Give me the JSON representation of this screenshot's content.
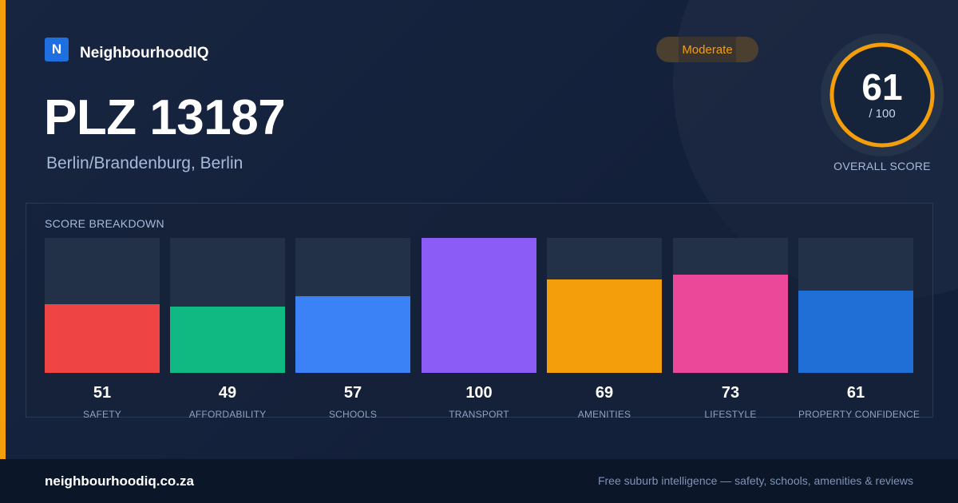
{
  "colors": {
    "accent_stripe": "#f59e0b",
    "brand_blue": "#1e6fe0",
    "ring": "#f59e0b",
    "badge_text": "#f59e0b"
  },
  "brand": {
    "logo_letter": "N",
    "name": "NeighbourhoodIQ"
  },
  "header": {
    "title": "PLZ 13187",
    "subtitle": "Berlin/Brandenburg, Berlin",
    "badge": "Moderate"
  },
  "overall": {
    "score": "61",
    "max": "/ 100",
    "label": "OVERALL SCORE",
    "fraction": 0.61
  },
  "breakdown": {
    "title": "SCORE BREAKDOWN",
    "items": [
      {
        "label": "SAFETY",
        "value": "51",
        "color": "#ef4444",
        "fraction": 0.51
      },
      {
        "label": "AFFORDABILITY",
        "value": "49",
        "color": "#10b981",
        "fraction": 0.49
      },
      {
        "label": "SCHOOLS",
        "value": "57",
        "color": "#3b82f6",
        "fraction": 0.57
      },
      {
        "label": "TRANSPORT",
        "value": "100",
        "color": "#8b5cf6",
        "fraction": 1.0
      },
      {
        "label": "AMENITIES",
        "value": "69",
        "color": "#f59e0b",
        "fraction": 0.69
      },
      {
        "label": "LIFESTYLE",
        "value": "73",
        "color": "#ec4899",
        "fraction": 0.73
      },
      {
        "label": "PROPERTY CONFIDENCE",
        "value": "61",
        "color": "#1f6fd6",
        "fraction": 0.61
      }
    ]
  },
  "footer": {
    "url": "neighbourhoodiq.co.za",
    "tagline": "Free suburb intelligence — safety, schools, amenities & reviews"
  }
}
